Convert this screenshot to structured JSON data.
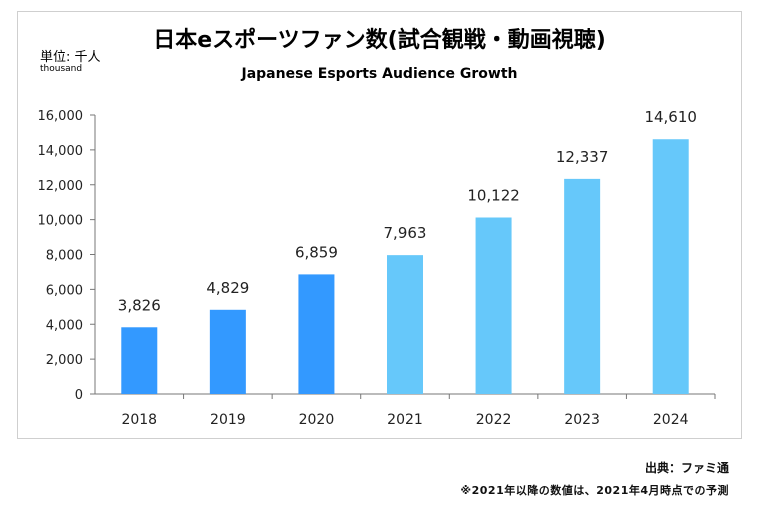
{
  "chart_data": {
    "type": "bar",
    "title": "日本eスポーツファン数(試合観戦・動画視聴)",
    "subtitle": "Japanese Esports Audience Growth",
    "unit_label": "単位: 千人",
    "unit_sub": "thousand",
    "categories": [
      "2018",
      "2019",
      "2020",
      "2021",
      "2022",
      "2023",
      "2024"
    ],
    "values": [
      3826,
      4829,
      6859,
      7963,
      10122,
      12337,
      14610
    ],
    "value_labels": [
      "3,826",
      "4,829",
      "6,859",
      "7,963",
      "10,122",
      "12,337",
      "14,610"
    ],
    "yticks": [
      0,
      2000,
      4000,
      6000,
      8000,
      10000,
      12000,
      14000,
      16000
    ],
    "ytick_labels": [
      "0",
      "2,000",
      "4,000",
      "6,000",
      "8,000",
      "10,000",
      "12,000",
      "14,000",
      "16,000"
    ],
    "ylim": [
      0,
      16000
    ],
    "xlabel": "",
    "ylabel": "",
    "colors": {
      "actual": "#3399ff",
      "forecast": "#66c8fa"
    },
    "forecast_from_index": 3
  },
  "footer": {
    "source": "出典：ファミ通",
    "note": "※2021年以降の数値は、2021年4月時点での予測"
  }
}
